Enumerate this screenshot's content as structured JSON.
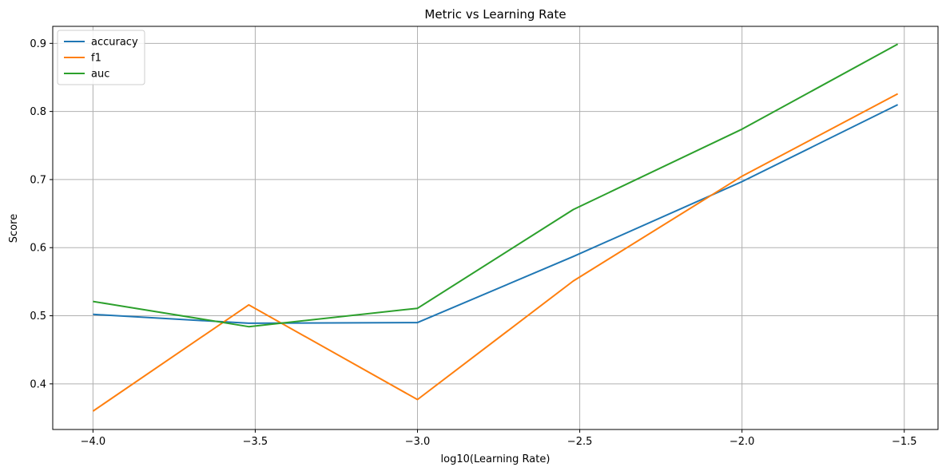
{
  "chart_data": {
    "type": "line",
    "title": "Metric vs Learning Rate",
    "xlabel": "log10(Learning Rate)",
    "ylabel": "Score",
    "x": [
      -4.0,
      -3.52,
      -3.0,
      -2.52,
      -2.0,
      -1.52
    ],
    "series": [
      {
        "name": "accuracy",
        "color": "#1f77b4",
        "values": [
          0.502,
          0.489,
          0.49,
          0.587,
          0.697,
          0.81
        ]
      },
      {
        "name": "f1",
        "color": "#ff7f0e",
        "values": [
          0.36,
          0.516,
          0.377,
          0.551,
          0.705,
          0.826
        ]
      },
      {
        "name": "auc",
        "color": "#2ca02c",
        "values": [
          0.521,
          0.484,
          0.511,
          0.656,
          0.774,
          0.899
        ]
      }
    ],
    "xlim": [
      -4.124,
      -1.396
    ],
    "ylim": [
      0.333,
      0.925
    ],
    "xticks": [
      -4.0,
      -3.5,
      -3.0,
      -2.5,
      -2.0,
      -1.5
    ],
    "xtick_labels": [
      "−4.0",
      "−3.5",
      "−3.0",
      "−2.5",
      "−2.0",
      "−1.5"
    ],
    "yticks": [
      0.4,
      0.5,
      0.6,
      0.7,
      0.8,
      0.9
    ],
    "ytick_labels": [
      "0.4",
      "0.5",
      "0.6",
      "0.7",
      "0.8",
      "0.9"
    ],
    "grid": true,
    "legend_position": "top-left"
  }
}
